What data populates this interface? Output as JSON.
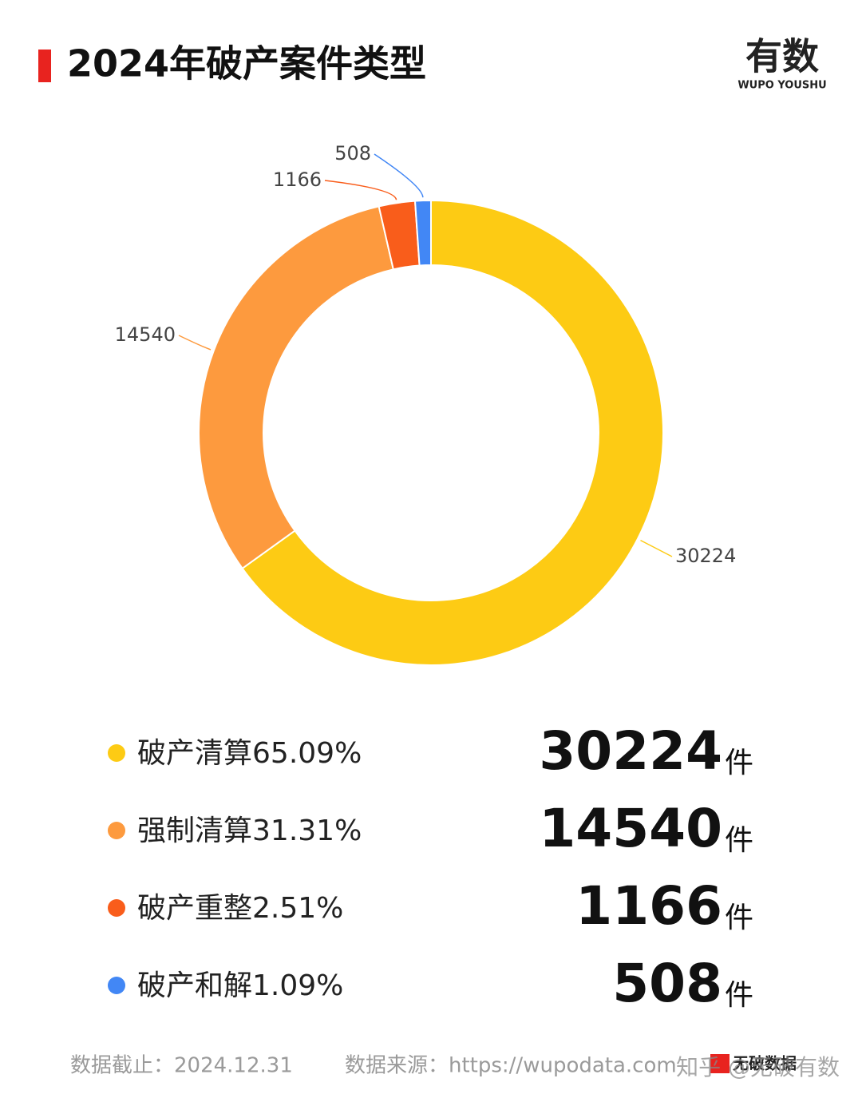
{
  "header": {
    "title": "2024年破产案件类型",
    "logo": "有数",
    "logo_sub": "WUPO YOUSHU"
  },
  "chart_data": {
    "type": "donut",
    "categories": [
      "破产清算",
      "强制清算",
      "破产重整",
      "破产和解"
    ],
    "values": [
      30224,
      14540,
      1166,
      508
    ],
    "share_labels": [
      "65.09%",
      "31.31%",
      "2.51%",
      "1.09%"
    ],
    "colors": [
      "#fdcb14",
      "#fd9a3e",
      "#f95d1b",
      "#4287f5"
    ],
    "unit": "件"
  },
  "footer": {
    "cutoff": "数据截止：2024.12.31",
    "source": "数据来源：https://wupodata.com",
    "brand": "无破数据",
    "watermark": "知乎 @无破有数"
  }
}
